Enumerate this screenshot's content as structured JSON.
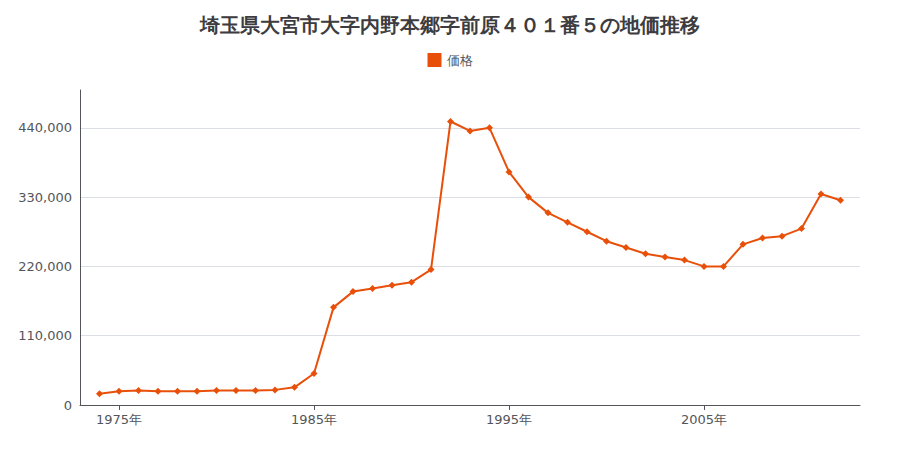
{
  "chart_data": {
    "type": "line",
    "title": "埼玉県大宮市大字内野本郷字前原４０１番５の地価推移",
    "x": [
      1974,
      1975,
      1976,
      1977,
      1978,
      1979,
      1980,
      1981,
      1982,
      1983,
      1984,
      1985,
      1986,
      1987,
      1988,
      1989,
      1990,
      1991,
      1992,
      1993,
      1994,
      1995,
      1996,
      1997,
      1998,
      1999,
      2000,
      2001,
      2002,
      2003,
      2004,
      2005,
      2006,
      2007,
      2008,
      2009,
      2010,
      2011,
      2012
    ],
    "series": [
      {
        "name": "価格",
        "color": "#E8500A",
        "marker": "diamond",
        "values": [
          18000,
          22000,
          23000,
          22000,
          22000,
          22000,
          23000,
          23000,
          23000,
          24000,
          28000,
          50000,
          155000,
          180000,
          185000,
          190000,
          195000,
          215000,
          450000,
          435000,
          440000,
          370000,
          330000,
          305000,
          290000,
          275000,
          260000,
          250000,
          240000,
          235000,
          230000,
          220000,
          220000,
          255000,
          265000,
          268000,
          280000,
          335000,
          325000
        ]
      }
    ],
    "xlim": [
      1973,
      2013
    ],
    "xticks": [
      {
        "value": 1975,
        "label": "1975年"
      },
      {
        "value": 1985,
        "label": "1985年"
      },
      {
        "value": 1995,
        "label": "1995年"
      },
      {
        "value": 2005,
        "label": "2005年"
      }
    ],
    "ylim": [
      0,
      500000
    ],
    "yticks": [
      0,
      {
        "value": 110000,
        "label": "110,000"
      },
      {
        "value": 220000,
        "label": "220,000"
      },
      {
        "value": 330000,
        "label": "330,000"
      },
      {
        "value": 440000,
        "label": "440,000"
      }
    ],
    "grid": true,
    "legend": "top"
  }
}
